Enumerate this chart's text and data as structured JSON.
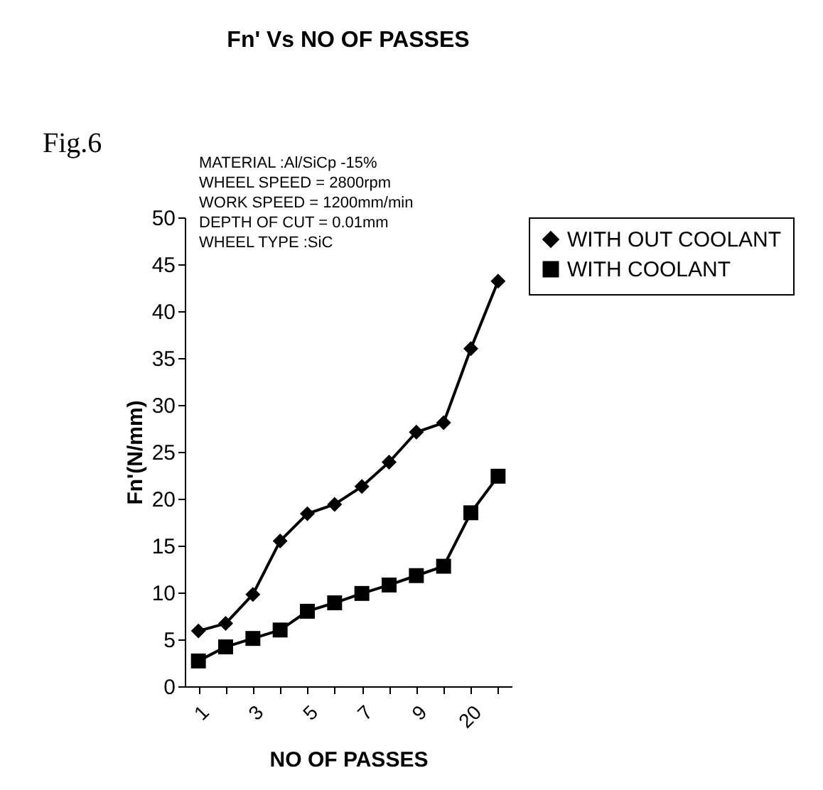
{
  "chart_data": {
    "type": "line",
    "title": "Fn' Vs NO OF PASSES",
    "xlabel": "NO OF PASSES",
    "ylabel": "Fn'(N/mm)",
    "annotations": [
      "Fig.6",
      "MATERIAL :Al/SiCp -15%",
      "WHEEL SPEED = 2800rpm",
      "WORK SPEED = 1200mm/min",
      "DEPTH OF CUT = 0.01mm",
      "WHEEL TYPE :SiC"
    ],
    "categories": [
      "1",
      null,
      "3",
      null,
      "5",
      null,
      "7",
      null,
      "9",
      null,
      "20",
      null
    ],
    "series": [
      {
        "name": "WITH OUT COOLANT",
        "color": "#000000",
        "marker": "diamond",
        "values": [
          5.9,
          6.7,
          9.8,
          15.5,
          18.4,
          19.4,
          21.3,
          23.9,
          27.1,
          28.1,
          36.0,
          43.2
        ]
      },
      {
        "name": "WITH COOLANT",
        "color": "#000000",
        "marker": "square",
        "values": [
          2.7,
          4.2,
          5.1,
          6.0,
          8.0,
          8.9,
          9.9,
          10.8,
          11.8,
          12.8,
          18.5,
          22.4
        ]
      }
    ],
    "ylim": [
      0,
      50
    ],
    "yticks": [
      0,
      5,
      10,
      15,
      20,
      25,
      30,
      35,
      40,
      45,
      50
    ],
    "grid": false,
    "legend": "right",
    "line_style": "solid"
  }
}
